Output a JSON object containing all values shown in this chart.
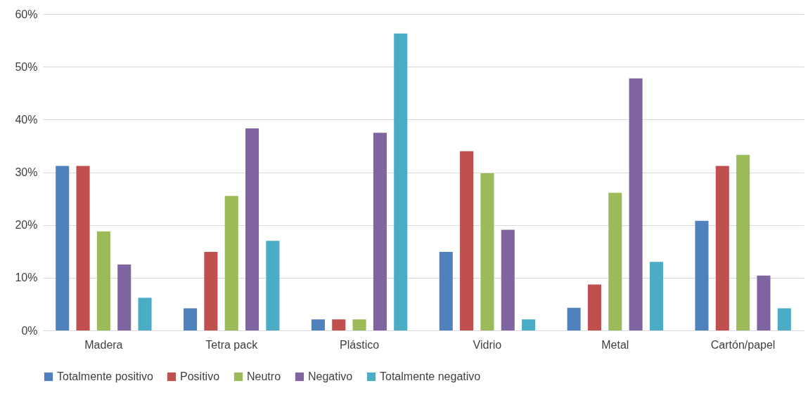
{
  "chart_data": {
    "type": "bar",
    "categories": [
      "Madera",
      "Tetra pack",
      "Plástico",
      "Vidrio",
      "Metal",
      "Cartón/papel"
    ],
    "series": [
      {
        "name": "Totalmente positivo",
        "color": "#4f81bd",
        "values": [
          31.2,
          4.2,
          2.1,
          14.9,
          4.3,
          20.8
        ]
      },
      {
        "name": "Positivo",
        "color": "#c0504d",
        "values": [
          31.2,
          14.9,
          2.1,
          34.0,
          8.7,
          31.2
        ]
      },
      {
        "name": "Neutro",
        "color": "#9bbb59",
        "values": [
          18.8,
          25.5,
          2.1,
          29.8,
          26.1,
          33.3
        ]
      },
      {
        "name": "Negativo",
        "color": "#8064a2",
        "values": [
          12.5,
          38.3,
          37.5,
          19.1,
          47.8,
          10.4
        ]
      },
      {
        "name": "Totalmente negativo",
        "color": "#4bacc6",
        "values": [
          6.2,
          17.0,
          56.3,
          2.1,
          13.0,
          4.2
        ]
      }
    ],
    "ylim": [
      0,
      60
    ],
    "yticks": [
      {
        "value": 0,
        "label": "0%"
      },
      {
        "value": 10,
        "label": "10%"
      },
      {
        "value": 20,
        "label": "20%"
      },
      {
        "value": 30,
        "label": "30%"
      },
      {
        "value": 40,
        "label": "40%"
      },
      {
        "value": 50,
        "label": "50%"
      },
      {
        "value": 60,
        "label": "60%"
      }
    ],
    "grid": "y",
    "legend": "bottom"
  }
}
